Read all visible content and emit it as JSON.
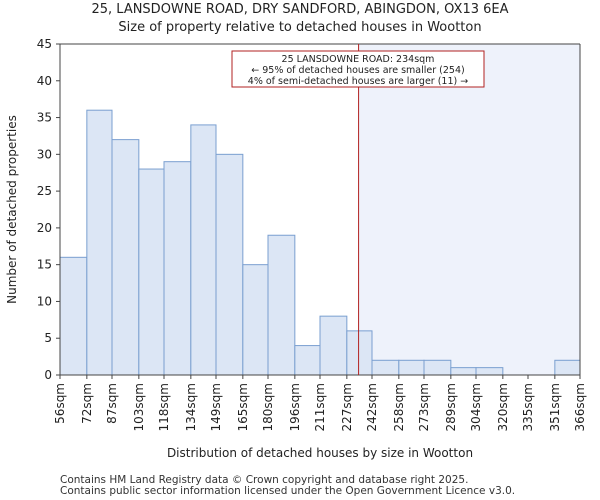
{
  "chart_data": {
    "type": "bar",
    "title": "25, LANSDOWNE ROAD, DRY SANDFORD, ABINGDON, OX13 6EA",
    "subtitle": "Size of property relative to detached houses in Wootton",
    "xlabel": "Distribution of detached houses by size in Wootton",
    "ylabel": "Number of detached properties",
    "bin_edges": [
      56,
      72,
      87,
      103,
      118,
      134,
      149,
      165,
      180,
      196,
      211,
      227,
      242,
      258,
      273,
      289,
      304,
      320,
      335,
      351,
      366
    ],
    "tick_labels": [
      "56sqm",
      "72sqm",
      "87sqm",
      "103sqm",
      "118sqm",
      "134sqm",
      "149sqm",
      "165sqm",
      "180sqm",
      "196sqm",
      "211sqm",
      "227sqm",
      "242sqm",
      "258sqm",
      "273sqm",
      "289sqm",
      "304sqm",
      "320sqm",
      "335sqm",
      "351sqm",
      "366sqm"
    ],
    "values": [
      16,
      36,
      32,
      28,
      29,
      34,
      30,
      15,
      19,
      4,
      8,
      6,
      2,
      2,
      2,
      1,
      1,
      0,
      0,
      2
    ],
    "ylim": [
      0,
      45
    ],
    "yticks": [
      0,
      5,
      10,
      15,
      20,
      25,
      30,
      35,
      40,
      45
    ],
    "grid": false,
    "marker": {
      "value": 234,
      "color": "#b22222",
      "annotation": [
        "25 LANSDOWNE ROAD: 234sqm",
        "← 95% of detached houses are smaller (254)",
        "4% of semi-detached houses are larger (11) →"
      ]
    },
    "colors": {
      "bar_fill": "#dce6f5",
      "bar_stroke": "#7a9fd0",
      "highlight_bg": "#eef2fb"
    }
  },
  "footer": {
    "line1": "Contains HM Land Registry data © Crown copyright and database right 2025.",
    "line2": "Contains public sector information licensed under the Open Government Licence v3.0."
  }
}
